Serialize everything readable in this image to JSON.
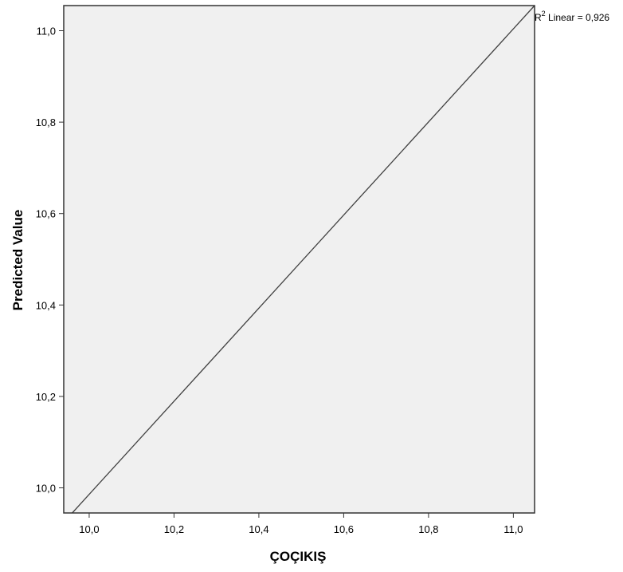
{
  "chart_data": {
    "type": "scatter",
    "title": "",
    "xlabel": "ÇOÇIKIŞ",
    "ylabel": "Predicted Value",
    "xlim": [
      9.94,
      11.05
    ],
    "ylim": [
      9.945,
      11.055
    ],
    "x_ticks": [
      10.0,
      10.2,
      10.4,
      10.6,
      10.8,
      11.0
    ],
    "y_ticks": [
      10.0,
      10.2,
      10.4,
      10.6,
      10.8,
      11.0
    ],
    "x_tick_labels": [
      "10,0",
      "10,2",
      "10,4",
      "10,6",
      "10,8",
      "11,0"
    ],
    "y_tick_labels": [
      "10,0",
      "10,2",
      "10,4",
      "10,6",
      "10,8",
      "11,0"
    ],
    "fit_line": {
      "x": [
        9.96,
        11.05
      ],
      "y": [
        9.945,
        11.055
      ]
    },
    "annotation": {
      "r_label": "R",
      "superscript": "2",
      "text": " Linear = 0,926"
    },
    "grid": false,
    "background_color": "#f0f0f0",
    "line_color": "#404040"
  }
}
